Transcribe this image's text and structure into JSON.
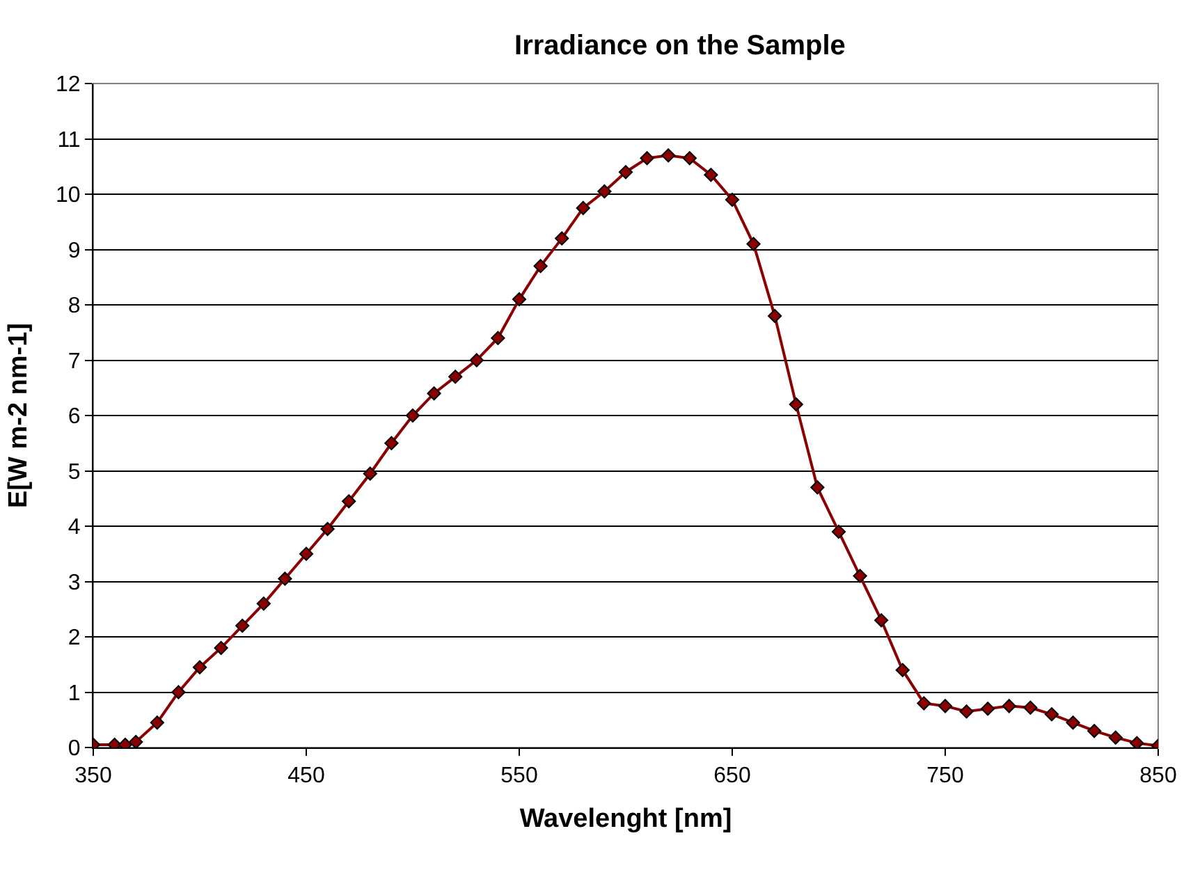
{
  "chart_data": {
    "type": "line",
    "title": "Irradiance on the Sample",
    "xlabel": "Wavelenght [nm]",
    "ylabel": "E[W m-2 nm-1]",
    "x": [
      350,
      360,
      365,
      370,
      380,
      390,
      400,
      410,
      420,
      430,
      440,
      450,
      460,
      470,
      480,
      490,
      500,
      510,
      520,
      530,
      540,
      550,
      560,
      570,
      580,
      590,
      600,
      610,
      620,
      630,
      640,
      650,
      660,
      670,
      680,
      690,
      700,
      710,
      720,
      730,
      740,
      750,
      760,
      770,
      780,
      790,
      800,
      810,
      820,
      830,
      840,
      850
    ],
    "series": [
      {
        "color": "#8b0000",
        "values": [
          0.05,
          0.05,
          0.05,
          0.1,
          0.45,
          1.0,
          1.45,
          1.8,
          2.2,
          2.6,
          3.05,
          3.5,
          3.95,
          4.45,
          4.95,
          5.5,
          6.0,
          6.4,
          6.7,
          7.0,
          7.4,
          8.1,
          8.7,
          9.2,
          9.75,
          10.05,
          10.4,
          10.65,
          10.7,
          10.65,
          10.35,
          9.9,
          9.1,
          7.8,
          6.2,
          4.7,
          3.9,
          3.1,
          2.3,
          1.4,
          0.8,
          0.75,
          0.65,
          0.7,
          0.75,
          0.72,
          0.6,
          0.45,
          0.3,
          0.18,
          0.08,
          0.03
        ]
      }
    ],
    "xlim": [
      350,
      850
    ],
    "xticks": [
      350,
      450,
      550,
      650,
      750,
      850
    ],
    "ylim": [
      0,
      12
    ],
    "yticks": [
      0,
      1,
      2,
      3,
      4,
      5,
      6,
      7,
      8,
      9,
      10,
      11,
      12
    ],
    "grid": "y",
    "marker": "diamond",
    "line_style": "solid"
  }
}
